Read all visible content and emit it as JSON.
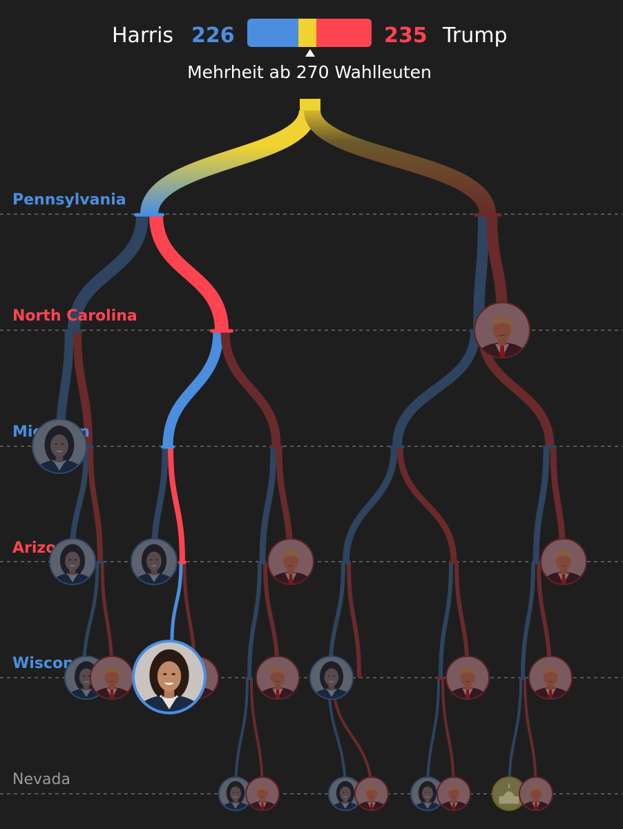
{
  "header": {
    "harris_name": "Harris",
    "harris_votes": "226",
    "trump_votes": "235",
    "trump_name": "Trump",
    "majority_text": "Mehrheit ab 270 Wahlleuten"
  },
  "states": [
    {
      "name": "Pennsylvania",
      "color": "#4b8ee0"
    },
    {
      "name": "North Carolina",
      "color": "#ff4451"
    },
    {
      "name": "Michigan",
      "color": "#4b8ee0"
    },
    {
      "name": "Arizona",
      "color": "#ff4451"
    },
    {
      "name": "Wisconsin",
      "color": "#4b8ee0"
    },
    {
      "name": "Nevada",
      "color": "#9a9a9a"
    }
  ],
  "colors": {
    "harris": "#4b8ee0",
    "trump": "#ff4451",
    "undecided": "#f0d230",
    "harris_dim": "#2e4460",
    "trump_dim": "#6a2a2c",
    "background": "#1f1e1e"
  },
  "outcomes": {
    "harris": "harris-portrait-icon",
    "trump": "trump-portrait-icon",
    "tie": "capitol-icon"
  }
}
